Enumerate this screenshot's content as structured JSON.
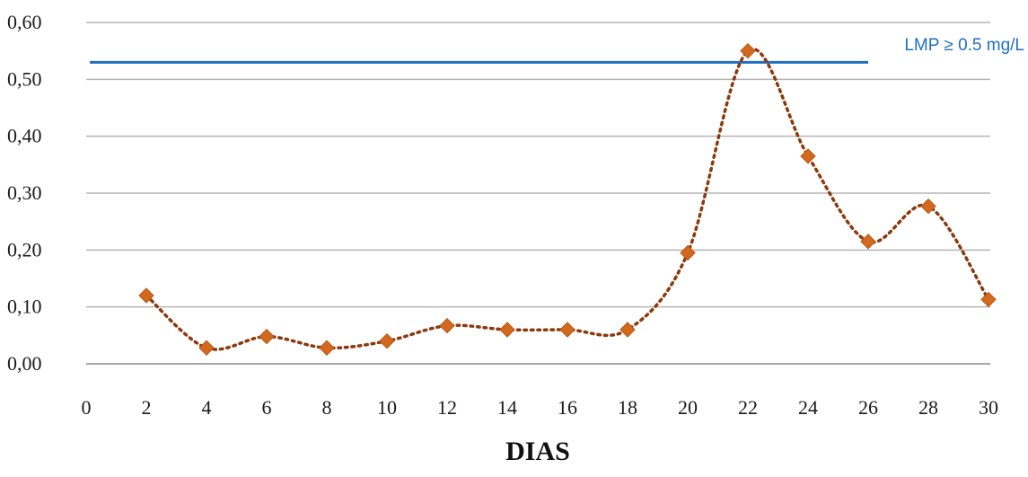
{
  "chart_data": {
    "type": "line",
    "title": "",
    "xlabel": "DIAS",
    "ylabel": "",
    "x_ticks": [
      "0",
      "2",
      "4",
      "6",
      "8",
      "10",
      "12",
      "14",
      "16",
      "18",
      "20",
      "22",
      "24",
      "26",
      "28",
      "30"
    ],
    "y_ticks": [
      "0,00",
      "0,10",
      "0,20",
      "0,30",
      "0,40",
      "0,50",
      "0,60"
    ],
    "xlim": [
      0,
      30
    ],
    "ylim": [
      0,
      0.6
    ],
    "grid": "horizontal",
    "series": [
      {
        "x": [
          2,
          4,
          6,
          8,
          10,
          12,
          14,
          16,
          18,
          20,
          22,
          24,
          26,
          28,
          30
        ],
        "values": [
          0.12,
          0.028,
          0.048,
          0.028,
          0.04,
          0.067,
          0.06,
          0.06,
          0.06,
          0.195,
          0.55,
          0.365,
          0.215,
          0.277,
          0.113
        ],
        "color": "#d2691e",
        "line_color": "#8b3a0e",
        "line_style": "dotted",
        "marker": "diamond"
      }
    ],
    "reference_line": {
      "label": "LMP ≥ 0.5 mg/L",
      "value": 0.53,
      "x_start": 0,
      "x_end": 26,
      "color": "#1f6fbf"
    },
    "colors": {
      "grid": "#b5b5b5",
      "axis": "#888888"
    }
  }
}
